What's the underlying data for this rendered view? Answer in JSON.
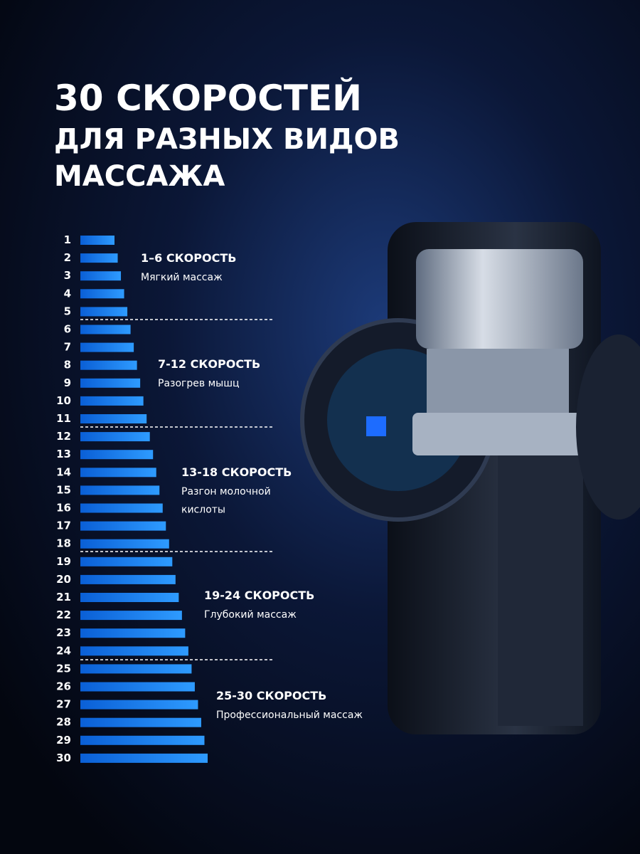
{
  "title": [
    "30 СКОРОСТЕЙ",
    "ДЛЯ РАЗНЫХ ВИДОВ",
    "МАССАЖА"
  ],
  "speeds": [
    "1",
    "2",
    "3",
    "4",
    "5",
    "6",
    "7",
    "8",
    "9",
    "10",
    "11",
    "12",
    "13",
    "14",
    "15",
    "16",
    "17",
    "18",
    "19",
    "20",
    "21",
    "22",
    "23",
    "24",
    "25",
    "26",
    "27",
    "28",
    "29",
    "30"
  ],
  "groups": [
    {
      "title": "1–6 СКОРОСТЬ",
      "description": [
        "Мягкий массаж"
      ]
    },
    {
      "title": "7-12 СКОРОСТЬ",
      "description": [
        "Разогрев мышц"
      ]
    },
    {
      "title": "13-18 СКОРОСТЬ",
      "description": [
        "Разгон молочной",
        "кислоты"
      ]
    },
    {
      "title": "19-24 СКОРОСТЬ",
      "description": [
        "Глубокий массаж"
      ]
    },
    {
      "title": "25-30 СКОРОСТЬ",
      "description": [
        "Профессиональный массаж"
      ]
    }
  ]
}
